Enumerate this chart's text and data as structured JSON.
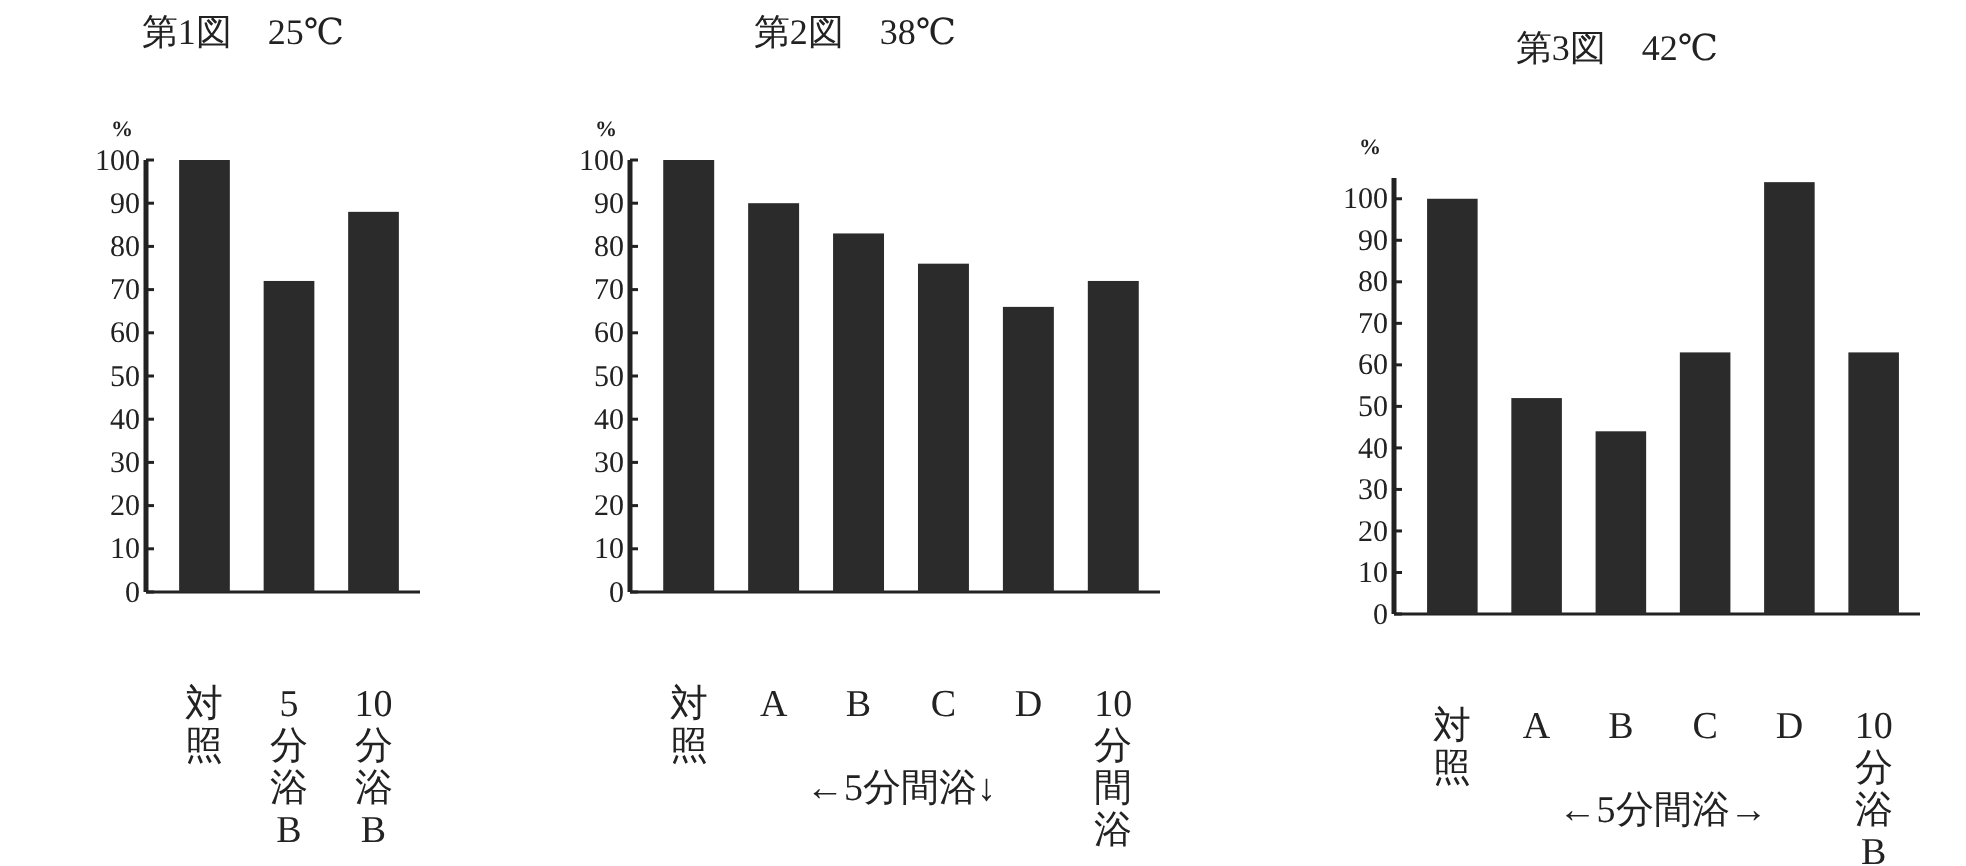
{
  "chart_data": [
    {
      "type": "bar",
      "title": "第1図　25℃",
      "ylabel": "%",
      "categories": [
        "対照",
        "5分浴B",
        "10分浴B"
      ],
      "values": [
        100,
        72,
        88
      ],
      "color": "#2b2b2b",
      "ylim": [
        0,
        100
      ],
      "yticks": [
        0,
        10,
        20,
        30,
        40,
        50,
        60,
        70,
        80,
        90,
        100
      ],
      "grid": false
    },
    {
      "type": "bar",
      "title": "第2図　38℃",
      "ylabel": "%",
      "categories": [
        "対照",
        "A",
        "B",
        "C",
        "D",
        "10分間浴"
      ],
      "values": [
        100,
        90,
        83,
        76,
        66,
        72
      ],
      "color": "#2b2b2b",
      "ylim": [
        0,
        100
      ],
      "yticks": [
        0,
        10,
        20,
        30,
        40,
        50,
        60,
        70,
        80,
        90,
        100
      ],
      "grid": false,
      "annotations": [
        "←5分間浴↓"
      ]
    },
    {
      "type": "bar",
      "title": "第3図　42℃",
      "ylabel": "%",
      "categories": [
        "対照",
        "A",
        "B",
        "C",
        "D",
        "10分浴B"
      ],
      "values": [
        100,
        52,
        44,
        63,
        104,
        63
      ],
      "color": "#2b2b2b",
      "ylim": [
        0,
        105
      ],
      "yticks": [
        0,
        10,
        20,
        30,
        40,
        50,
        60,
        70,
        80,
        90,
        100
      ],
      "grid": false,
      "annotations": [
        "←5分間浴→"
      ]
    }
  ]
}
